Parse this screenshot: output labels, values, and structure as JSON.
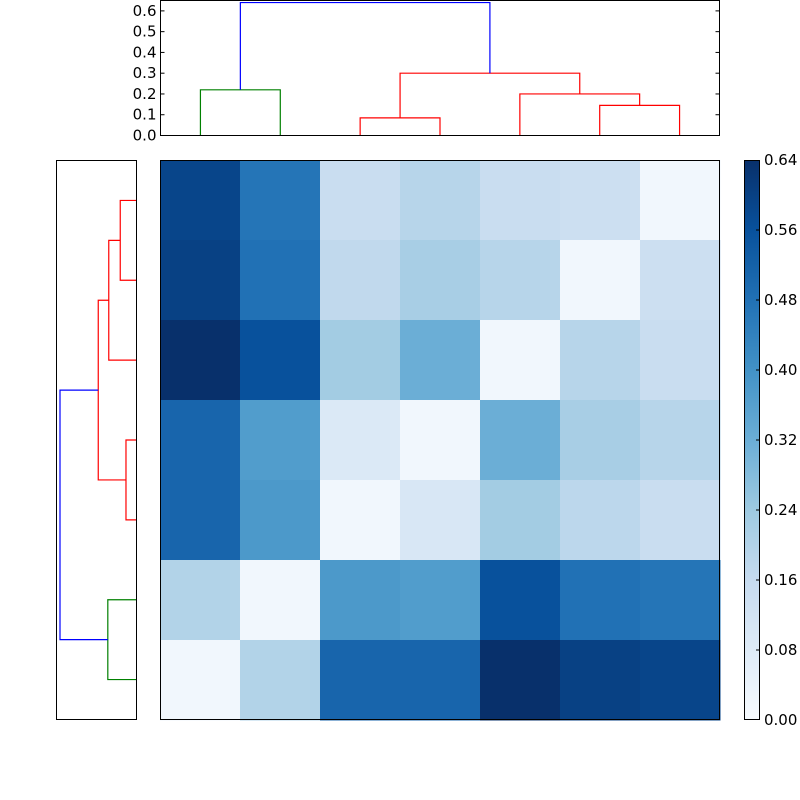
{
  "chart_data": [
    {
      "type": "dendrogram",
      "orientation": "top",
      "ylim": [
        0,
        0.65
      ],
      "yticks": [
        "0.0",
        "0.1",
        "0.2",
        "0.3",
        "0.4",
        "0.5",
        "0.6"
      ],
      "grid": false,
      "leaf_count": 7,
      "links": [
        {
          "left": 0.5,
          "right": 1.5,
          "height": 0.22,
          "color": "#008000"
        },
        {
          "left": 2.5,
          "right": 3.5,
          "height": 0.085,
          "color": "#ff0000"
        },
        {
          "left": 5.5,
          "right": 6.5,
          "height": 0.145,
          "color": "#ff0000"
        },
        {
          "left": 4.5,
          "right": 6.0,
          "height": 0.2,
          "color": "#ff0000"
        },
        {
          "left": 3.0,
          "right": 5.25,
          "height": 0.3,
          "color": "#ff0000"
        },
        {
          "left": 1.0,
          "right": 4.125,
          "height": 0.64,
          "color": "#0000ff"
        }
      ]
    },
    {
      "type": "dendrogram",
      "orientation": "left",
      "leaf_count": 7,
      "links": [
        {
          "a": 0.5,
          "b": 1.5,
          "height": 0.085,
          "color": "#ff0000"
        },
        {
          "a": 1.0,
          "b": 2.5,
          "height": 0.145,
          "color": "#ff0000"
        },
        {
          "a": 3.5,
          "b": 4.5,
          "height": 0.055,
          "color": "#ff0000"
        },
        {
          "a": 1.75,
          "b": 4.0,
          "height": 0.2,
          "color": "#ff0000"
        },
        {
          "a": 5.5,
          "b": 6.5,
          "height": 0.15,
          "color": "#008000"
        },
        {
          "a": 2.875,
          "b": 6.0,
          "height": 0.4,
          "color": "#0000ff"
        }
      ]
    },
    {
      "type": "heatmap",
      "rows": 7,
      "cols": 7,
      "values": [
        [
          0.59,
          0.47,
          0.15,
          0.19,
          0.15,
          0.14,
          0.02
        ],
        [
          0.6,
          0.48,
          0.17,
          0.22,
          0.19,
          0.02,
          0.14
        ],
        [
          0.64,
          0.56,
          0.23,
          0.32,
          0.02,
          0.19,
          0.15
        ],
        [
          0.51,
          0.37,
          0.09,
          0.02,
          0.32,
          0.22,
          0.19
        ],
        [
          0.51,
          0.38,
          0.02,
          0.1,
          0.23,
          0.18,
          0.15
        ],
        [
          0.2,
          0.02,
          0.38,
          0.37,
          0.56,
          0.48,
          0.47
        ],
        [
          0.02,
          0.2,
          0.51,
          0.51,
          0.64,
          0.6,
          0.59
        ]
      ],
      "colorbar": {
        "colormap": "Blues",
        "range": [
          0.0,
          0.64
        ],
        "ticks": [
          "0.00",
          "0.08",
          "0.16",
          "0.24",
          "0.32",
          "0.40",
          "0.48",
          "0.56",
          "0.64"
        ]
      }
    }
  ]
}
